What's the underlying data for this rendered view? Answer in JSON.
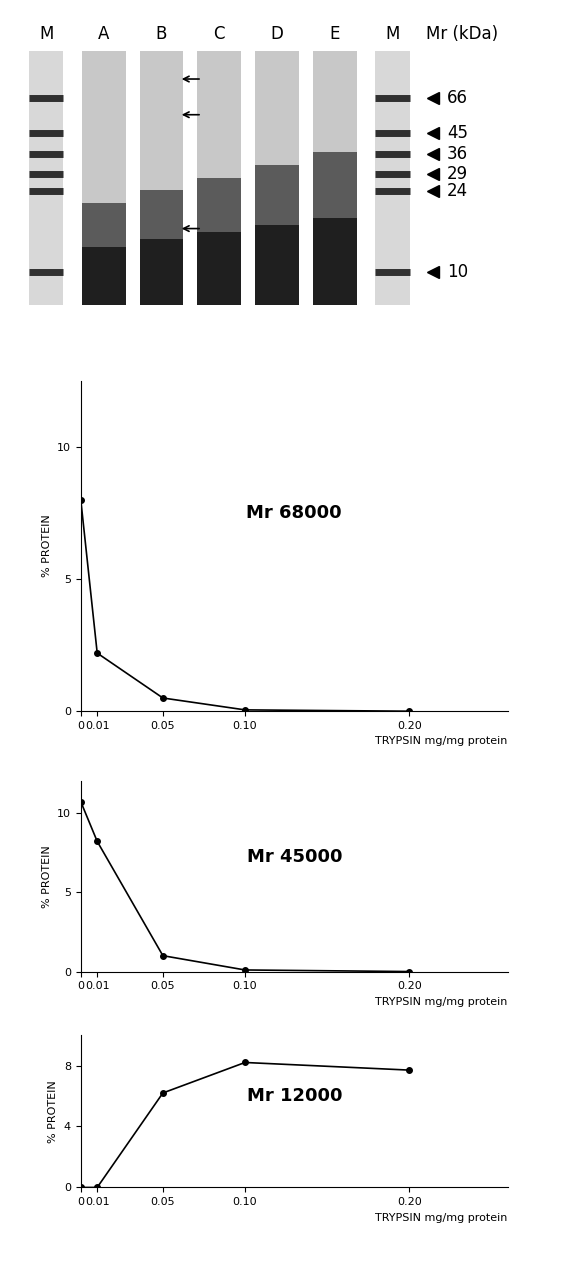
{
  "gel": {
    "lanes": [
      "M",
      "A",
      "B",
      "C",
      "D",
      "E",
      "M"
    ],
    "axis_label": "Mr (kDa)",
    "markers": [
      66,
      45,
      36,
      29,
      24,
      10
    ],
    "ylim": [
      7,
      110
    ],
    "arrows_mr": [
      81,
      55,
      16
    ],
    "arrow_lane": "B"
  },
  "chart_data": [
    {
      "type": "line",
      "title": "Mr 68000",
      "x": [
        0,
        0.01,
        0.05,
        0.1,
        0.2
      ],
      "values": [
        8.0,
        2.2,
        0.5,
        0.05,
        0.0
      ],
      "xlabel": "TRYPSIN mg/mg protein",
      "ylabel": "% PROTEIN",
      "xlim": [
        0,
        0.26
      ],
      "ylim": [
        0,
        12.5
      ],
      "xticks": [
        0,
        0.01,
        0.05,
        {
          "value": 0.1,
          "label": "0.10"
        },
        {
          "value": 0.2,
          "label": "0.20"
        }
      ],
      "yticks": [
        0,
        5,
        10
      ],
      "color": "#000000",
      "marker": "o",
      "line_style": "solid",
      "grid": false
    },
    {
      "type": "line",
      "title": "Mr 45000",
      "x": [
        0,
        0.01,
        0.05,
        0.1,
        0.2
      ],
      "values": [
        10.7,
        8.2,
        1.0,
        0.1,
        0.0
      ],
      "xlabel": "TRYPSIN mg/mg protein",
      "ylabel": "% PROTEIN",
      "xlim": [
        0,
        0.26
      ],
      "ylim": [
        0,
        12
      ],
      "xticks": [
        0,
        0.01,
        0.05,
        {
          "value": 0.1,
          "label": "0.10"
        },
        {
          "value": 0.2,
          "label": "0.20"
        }
      ],
      "yticks": [
        0,
        5,
        10
      ],
      "color": "#000000",
      "marker": "o",
      "line_style": "solid",
      "grid": false
    },
    {
      "type": "line",
      "title": "Mr 12000",
      "x": [
        0,
        0.01,
        0.05,
        0.1,
        0.2
      ],
      "values": [
        0.0,
        0.0,
        6.2,
        8.2,
        7.7
      ],
      "xlabel": "TRYPSIN mg/mg protein",
      "ylabel": "% PROTEIN",
      "xlim": [
        0,
        0.26
      ],
      "ylim": [
        0,
        10
      ],
      "xticks": [
        0,
        0.01,
        0.05,
        {
          "value": 0.1,
          "label": "0.10"
        },
        {
          "value": 0.2,
          "label": "0.20"
        }
      ],
      "yticks": [
        0,
        4,
        8
      ],
      "color": "#000000",
      "marker": "o",
      "line_style": "solid",
      "grid": false
    }
  ]
}
